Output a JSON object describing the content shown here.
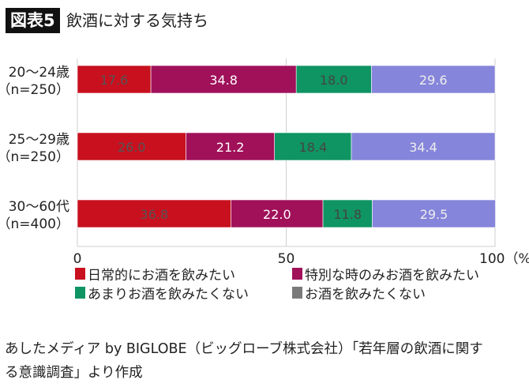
{
  "title": {
    "badge": "図表5",
    "text": "飲酒に対する気持ち"
  },
  "chart_data": {
    "type": "bar",
    "orientation": "horizontal",
    "stacked": true,
    "categories": [
      [
        "20〜24歳",
        "（n=250）"
      ],
      [
        "25〜29歳",
        "（n=250）"
      ],
      [
        "30〜60代",
        "（n=400）"
      ]
    ],
    "series": [
      {
        "name": "日常的にお酒を飲みたい",
        "values": [
          17.6,
          26.0,
          36.8
        ],
        "color": "#c8101e",
        "label_color": "#555555"
      },
      {
        "name": "特別な時のみお酒を飲みたい",
        "values": [
          34.8,
          21.2,
          22.0
        ],
        "color": "#a0115a",
        "label_color": "#ffffff"
      },
      {
        "name": "あまりお酒を飲みたくない",
        "values": [
          18.0,
          18.4,
          11.8
        ],
        "color": "#0f9463",
        "label_color": "#444444"
      },
      {
        "name": "お酒を飲みたくない",
        "values": [
          29.6,
          34.4,
          29.5
        ],
        "color": "#8585db",
        "label_color": "#eeeeee",
        "legend_color": "#7a7a7a"
      }
    ],
    "xlim": [
      0,
      100
    ],
    "xticks": [
      "0",
      "50",
      "100（%）"
    ],
    "xtick_values": [
      0,
      50,
      100
    ],
    "grid": true,
    "legend_placement": "bottom"
  },
  "source": [
    "あしたメディア by BIGLOBE（ビッグローブ株式会社）「若年層の飲酒に関す",
    "る意識調査」より作成"
  ]
}
